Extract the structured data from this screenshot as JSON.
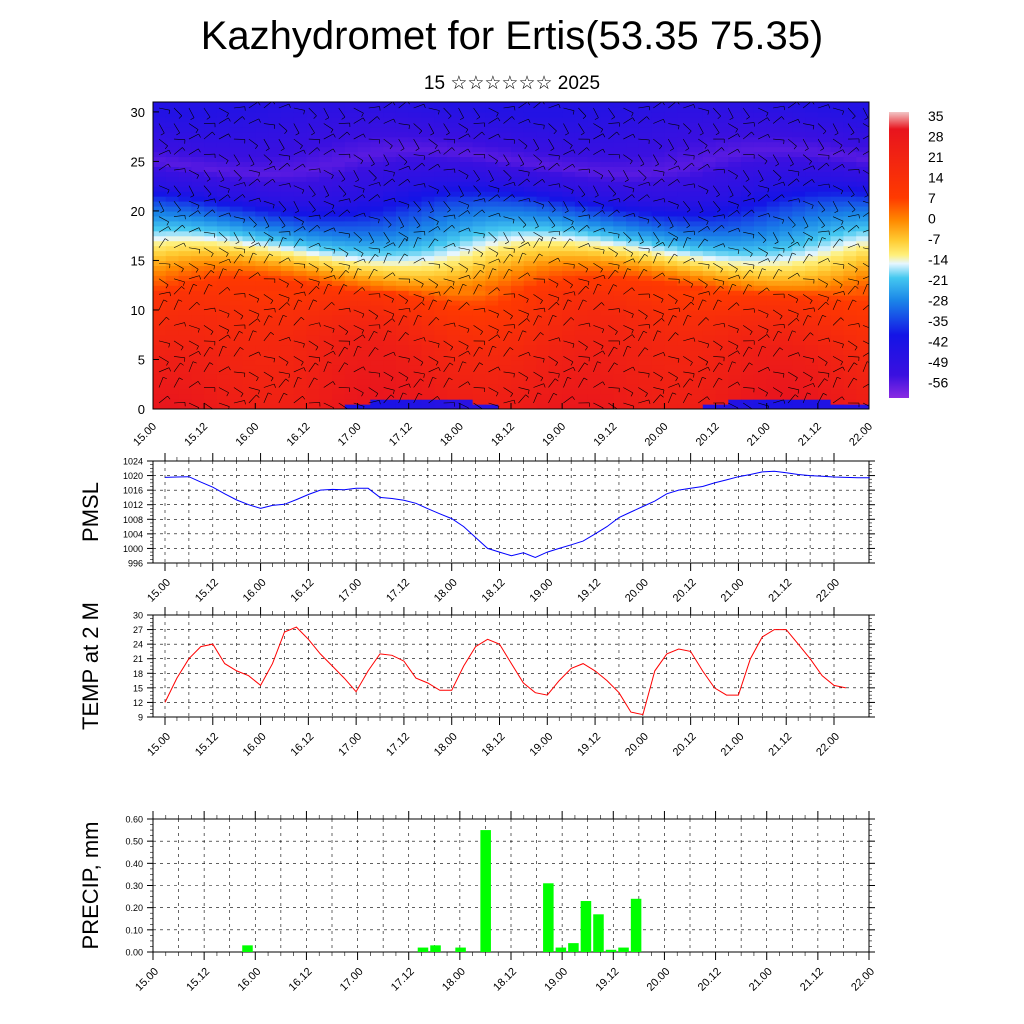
{
  "header": {
    "title": "Kazhydromet for Ertis(53.35 75.35)",
    "subtitle": "15 ☆☆☆☆☆☆ 2025"
  },
  "time_labels": [
    "15.00",
    "15.12",
    "16.00",
    "16.12",
    "17.00",
    "17.12",
    "18.00",
    "18.12",
    "19.00",
    "19.12",
    "20.00",
    "20.12",
    "21.00",
    "21.12",
    "22.00"
  ],
  "chart_data": [
    {
      "type": "heatmap",
      "name": "temperature-cross-section",
      "x_tick_labels": [
        "15.00",
        "15.12",
        "16.00",
        "16.12",
        "17.00",
        "17.12",
        "18.00",
        "18.12",
        "19.00",
        "19.12",
        "20.00",
        "20.12",
        "21.00",
        "21.12",
        "22.00"
      ],
      "y_tick_labels": [
        "0",
        "5",
        "10",
        "15",
        "20",
        "25",
        "30"
      ],
      "ylim": [
        0,
        31
      ],
      "colorbar_labels": [
        "35",
        "28",
        "21",
        "14",
        "7",
        "0",
        "-7",
        "-14",
        "-21",
        "-28",
        "-35",
        "-42",
        "-49",
        "-56"
      ],
      "colorbar_range": [
        -63,
        40
      ],
      "overlay": "wind barbs",
      "layers": [
        {
          "height": 0,
          "value": 30
        },
        {
          "height": 3,
          "value": 27
        },
        {
          "height": 6,
          "value": 24
        },
        {
          "height": 9,
          "value": 18
        },
        {
          "height": 12,
          "value": 10
        },
        {
          "height": 15,
          "value": -8
        },
        {
          "height": 18,
          "value": -25
        },
        {
          "height": 20,
          "value": -35
        },
        {
          "height": 22,
          "value": -48
        },
        {
          "height": 25,
          "value": -58
        },
        {
          "height": 28,
          "value": -52
        },
        {
          "height": 31,
          "value": -46
        }
      ],
      "colors": {
        "hot": "#e81a00",
        "cold": "#1212e6",
        "zero": "#fff07a"
      }
    },
    {
      "type": "line",
      "ylabel": "PMSL",
      "x_tick_labels": [
        "15.00",
        "15.12",
        "16.00",
        "16.12",
        "17.00",
        "17.12",
        "18.00",
        "18.12",
        "19.00",
        "19.12",
        "20.00",
        "20.12",
        "21.00",
        "21.12",
        "22.00"
      ],
      "y_ticks": [
        996,
        1000,
        1004,
        1008,
        1012,
        1016,
        1020,
        1024
      ],
      "ylim": [
        996,
        1024
      ],
      "color": "#0000ff",
      "step_hours": 3,
      "values": [
        1019.5,
        1019.6,
        1019.7,
        1018.2,
        1016.8,
        1015.0,
        1013.3,
        1012.0,
        1011.0,
        1011.8,
        1012.1,
        1013.4,
        1014.8,
        1016.0,
        1016.2,
        1016.1,
        1016.5,
        1016.5,
        1014.0,
        1013.7,
        1013.2,
        1012.4,
        1010.9,
        1009.5,
        1008.2,
        1006.0,
        1003.0,
        1000.0,
        999.0,
        998.0,
        998.8,
        997.5,
        999.0,
        1000.0,
        1001.0,
        1002.0,
        1004.0,
        1006.0,
        1008.5,
        1010.0,
        1011.5,
        1013.0,
        1015.0,
        1016.0,
        1016.5,
        1017.0,
        1018.0,
        1018.8,
        1019.7,
        1020.3,
        1021.0,
        1021.2,
        1020.8,
        1020.3,
        1020.0,
        1019.8,
        1019.6,
        1019.5,
        1019.4,
        1019.4
      ]
    },
    {
      "type": "line",
      "ylabel": "TEMP at 2 M",
      "x_tick_labels": [
        "15.00",
        "15.12",
        "16.00",
        "16.12",
        "17.00",
        "17.12",
        "18.00",
        "18.12",
        "19.00",
        "19.12",
        "20.00",
        "20.12",
        "21.00",
        "21.12",
        "22.00"
      ],
      "y_ticks": [
        9,
        12,
        15,
        18,
        21,
        24,
        27,
        30
      ],
      "ylim": [
        9,
        30
      ],
      "color": "#ff0000",
      "step_hours": 3,
      "values": [
        12,
        17,
        21,
        23.5,
        24,
        20,
        18.5,
        17.5,
        15.5,
        20,
        26.5,
        27.5,
        25,
        22,
        19.5,
        17,
        14.2,
        18.5,
        22,
        21.7,
        20.5,
        17,
        16,
        14.5,
        14.5,
        19.5,
        23.5,
        25,
        24,
        20,
        16,
        14,
        13.5,
        16.5,
        19,
        20,
        18.5,
        16.5,
        14,
        10,
        9.5,
        18.5,
        22,
        23,
        22.5,
        18.5,
        15,
        13.5,
        13.5,
        21,
        25.5,
        27,
        27,
        24,
        21,
        17.5,
        15.5,
        15
      ]
    },
    {
      "type": "bar",
      "ylabel": "PRECIP, mm",
      "x_tick_labels": [
        "15.00",
        "15.12",
        "16.00",
        "16.12",
        "17.00",
        "17.12",
        "18.00",
        "18.12",
        "19.00",
        "19.12",
        "20.00",
        "20.12",
        "21.00",
        "21.12",
        "22.00"
      ],
      "y_tick_labels": [
        "0.00",
        "0.10",
        "0.20",
        "0.30",
        "0.40",
        "0.50",
        "0.60"
      ],
      "ylim": [
        0,
        0.6
      ],
      "color": "#00ff00",
      "step_hours": 3,
      "values": [
        0,
        0,
        0,
        0,
        0,
        0,
        0.03,
        0,
        0,
        0,
        0,
        0,
        0,
        0,
        0,
        0,
        0,
        0,
        0,
        0,
        0.02,
        0.03,
        0,
        0.02,
        0,
        0.55,
        0,
        0,
        0,
        0,
        0.31,
        0.02,
        0.04,
        0.23,
        0.17,
        0.01,
        0.02,
        0.24,
        0,
        0,
        0,
        0,
        0,
        0,
        0,
        0,
        0,
        0,
        0,
        0,
        0,
        0,
        0,
        0,
        0,
        0,
        0,
        0
      ]
    }
  ]
}
